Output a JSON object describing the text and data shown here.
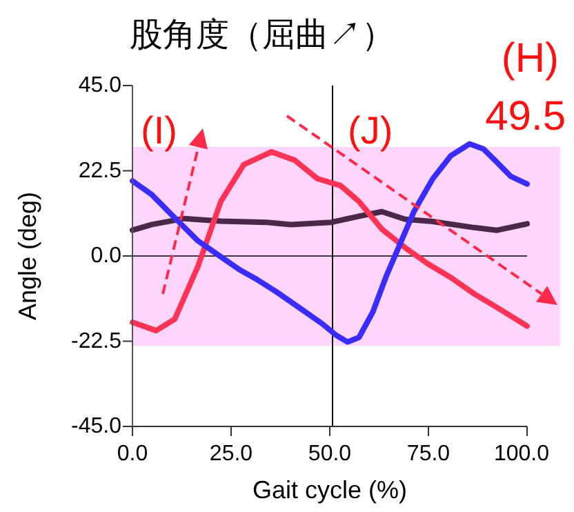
{
  "chart_data": {
    "type": "line",
    "title": "股角度（屈曲↗）",
    "xlabel": "Gait cycle (%)",
    "ylabel": "Angle (deg)",
    "xlim": [
      0,
      100
    ],
    "ylim": [
      -45,
      45
    ],
    "xticks": [
      {
        "value": 0,
        "label": "0.0"
      },
      {
        "value": 25,
        "label": "25.0"
      },
      {
        "value": 50,
        "label": "50.0"
      },
      {
        "value": 75,
        "label": "75.0"
      },
      {
        "value": 100,
        "label": "100.0"
      }
    ],
    "yticks": [
      {
        "value": -45,
        "label": "-45.0"
      },
      {
        "value": -22.5,
        "label": "-22.5"
      },
      {
        "value": 0,
        "label": "0.0"
      },
      {
        "value": 22.5,
        "label": "22.5"
      },
      {
        "value": 45,
        "label": "45.0"
      }
    ],
    "grid": false,
    "marker": "none",
    "line_style": "solid",
    "series": [
      {
        "color": "#4a2848",
        "x": [
          0,
          4.9,
          13.1,
          22.4,
          34.1,
          40.1,
          50.4,
          57.4,
          63.2,
          69.1,
          76.1,
          86.6,
          92.4,
          100
        ],
        "values": [
          6.8,
          8.3,
          9.9,
          9.2,
          8.9,
          8.3,
          8.9,
          10.5,
          11.7,
          9.7,
          9.1,
          7.5,
          6.8,
          8.5
        ]
      },
      {
        "color": "#ff3355",
        "x": [
          0,
          6,
          10.7,
          16.6,
          22.4,
          28.2,
          35.2,
          41.1,
          46.9,
          52.7,
          57.4,
          63.2,
          69.1,
          74.9,
          80.7,
          86.6,
          92.4,
          100
        ],
        "values": [
          -17.5,
          -19.7,
          -16.7,
          -2.7,
          14.4,
          24.1,
          27.5,
          25.3,
          20.4,
          18.6,
          14.4,
          7.1,
          2.2,
          -2.1,
          -5.7,
          -10,
          -13.6,
          -18.5
        ]
      },
      {
        "color": "#3a2bff",
        "x": [
          0,
          4.9,
          10.7,
          16.6,
          22.4,
          27.1,
          31.7,
          36.4,
          42.2,
          48.1,
          51.6,
          54.5,
          57.4,
          60.9,
          64.4,
          67.9,
          71.4,
          76.1,
          80.7,
          85.4,
          88.9,
          92.4,
          95.9,
          100
        ],
        "values": [
          19.8,
          16.2,
          10.1,
          4,
          -0.2,
          -3.6,
          -6.3,
          -9.4,
          -13.6,
          -17.9,
          -20.9,
          -22.7,
          -21.5,
          -14.8,
          -5.1,
          3.4,
          11.9,
          20.4,
          26.5,
          29.6,
          28.3,
          24.7,
          21,
          19
        ]
      }
    ],
    "ref_lines": [
      {
        "axis": "y",
        "value": 0,
        "color": "#000000"
      },
      {
        "axis": "x",
        "value": 50.7,
        "color": "#000000"
      }
    ],
    "bands": [
      {
        "axis": "y",
        "from": -23.7,
        "to": 28.8,
        "color": "#ffd6fb"
      }
    ],
    "annotations": [
      "(I)",
      "(J)",
      "(H)",
      "49.5"
    ]
  }
}
